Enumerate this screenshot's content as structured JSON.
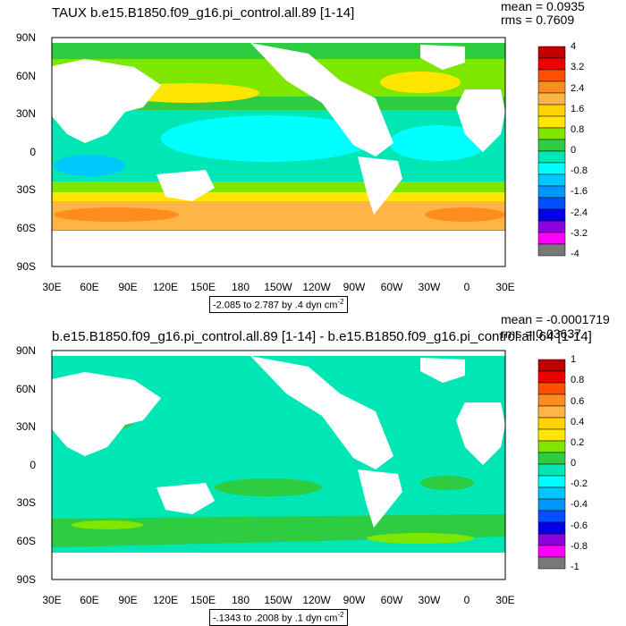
{
  "panels": [
    {
      "title": "TAUX b.e15.B1850.f09_g16.pi_control.all.89 [1-14]",
      "mean": "mean = 0.0935",
      "rms": "rms = 0.7609",
      "info": "-2.085 to 2.787 by .4 dyn cm",
      "info_exp": "-2",
      "colorbar_labels": [
        "4",
        "3.2",
        "2.4",
        "1.6",
        "0.8",
        "0",
        "-0.8",
        "-1.6",
        "-2.4",
        "-3.2",
        "-4"
      ]
    },
    {
      "title": "b.e15.B1850.f09_g16.pi_control.all.89 [1-14] - b.e15.B1850.f09_g16.pi_control.all.64 [1-14]",
      "mean": "mean = -0.0001719",
      "rms": "rms = 0.03637",
      "info": "-.1343 to .2008 by .1 dyn cm",
      "info_exp": "-2",
      "colorbar_labels": [
        "1",
        "0.8",
        "0.6",
        "0.4",
        "0.2",
        "0",
        "-0.2",
        "-0.4",
        "-0.6",
        "-0.8",
        "-1"
      ]
    }
  ],
  "x_ticks": [
    "30E",
    "60E",
    "90E",
    "120E",
    "150E",
    "180",
    "150W",
    "120W",
    "90W",
    "60W",
    "30W",
    "0",
    "30E"
  ],
  "y_ticks": [
    "90N",
    "60N",
    "30N",
    "0",
    "30S",
    "60S",
    "90S"
  ],
  "colors": {
    "colorbar": [
      "#c00000",
      "#ee0000",
      "#ff5000",
      "#ff8c1e",
      "#ffb446",
      "#ffe600",
      "#7fe600",
      "#2ecc40",
      "#00e6b4",
      "#00ffff",
      "#00c8ff",
      "#0096ff",
      "#0050ff",
      "#0000e6",
      "#8c00dc",
      "#ff00ff",
      "#c8c8c8",
      "#787878"
    ],
    "land": "#ffffff",
    "top_dominant": "#00e6b4",
    "bottom_dominant": "#00e6b4"
  }
}
